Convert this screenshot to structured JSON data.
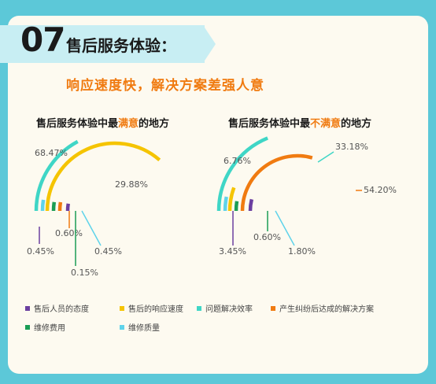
{
  "header": {
    "number": "07",
    "title": "售后服务体验：",
    "subtitle": "响应速度快，解决方案差强人意"
  },
  "colors": {
    "background": "#5cc8d8",
    "card": "#fdfaf0",
    "accent": "#f07b11"
  },
  "legend": [
    {
      "name": "售后人员的态度",
      "color": "#6b3fa0"
    },
    {
      "name": "售后的响应速度",
      "color": "#f5c400"
    },
    {
      "name": "问题解决效率",
      "color": "#3fd6c6"
    },
    {
      "name": "产生纠纷后达成的解决方案",
      "color": "#f07b11"
    },
    {
      "name": "维修费用",
      "color": "#1a9d55"
    },
    {
      "name": "维修质量",
      "color": "#5fd3ea"
    }
  ],
  "chart_data": [
    {
      "type": "pie",
      "title_parts": [
        "售后服务体验中最",
        "满意",
        "的地方"
      ],
      "categories": [
        "售后人员的态度",
        "售后的响应速度",
        "问题解决效率",
        "产生纠纷后达成的解决方案",
        "维修费用",
        "维修质量"
      ],
      "values": [
        0.45,
        68.47,
        29.88,
        0.6,
        0.15,
        0.45
      ],
      "labels": [
        "0.45%",
        "68.47%",
        "29.88%",
        "0.60%",
        "0.15%",
        "0.45%"
      ]
    },
    {
      "type": "pie",
      "title_parts": [
        "售后服务体验中最",
        "不满意",
        "的地方"
      ],
      "categories": [
        "售后人员的态度",
        "售后的响应速度",
        "问题解决效率",
        "产生纠纷后达成的解决方案",
        "维修费用",
        "维修质量"
      ],
      "values": [
        3.45,
        6.76,
        33.18,
        54.2,
        0.6,
        1.8
      ],
      "labels": [
        "3.45%",
        "6.76%",
        "33.18%",
        "54.20%",
        "0.60%",
        "1.80%"
      ]
    }
  ]
}
